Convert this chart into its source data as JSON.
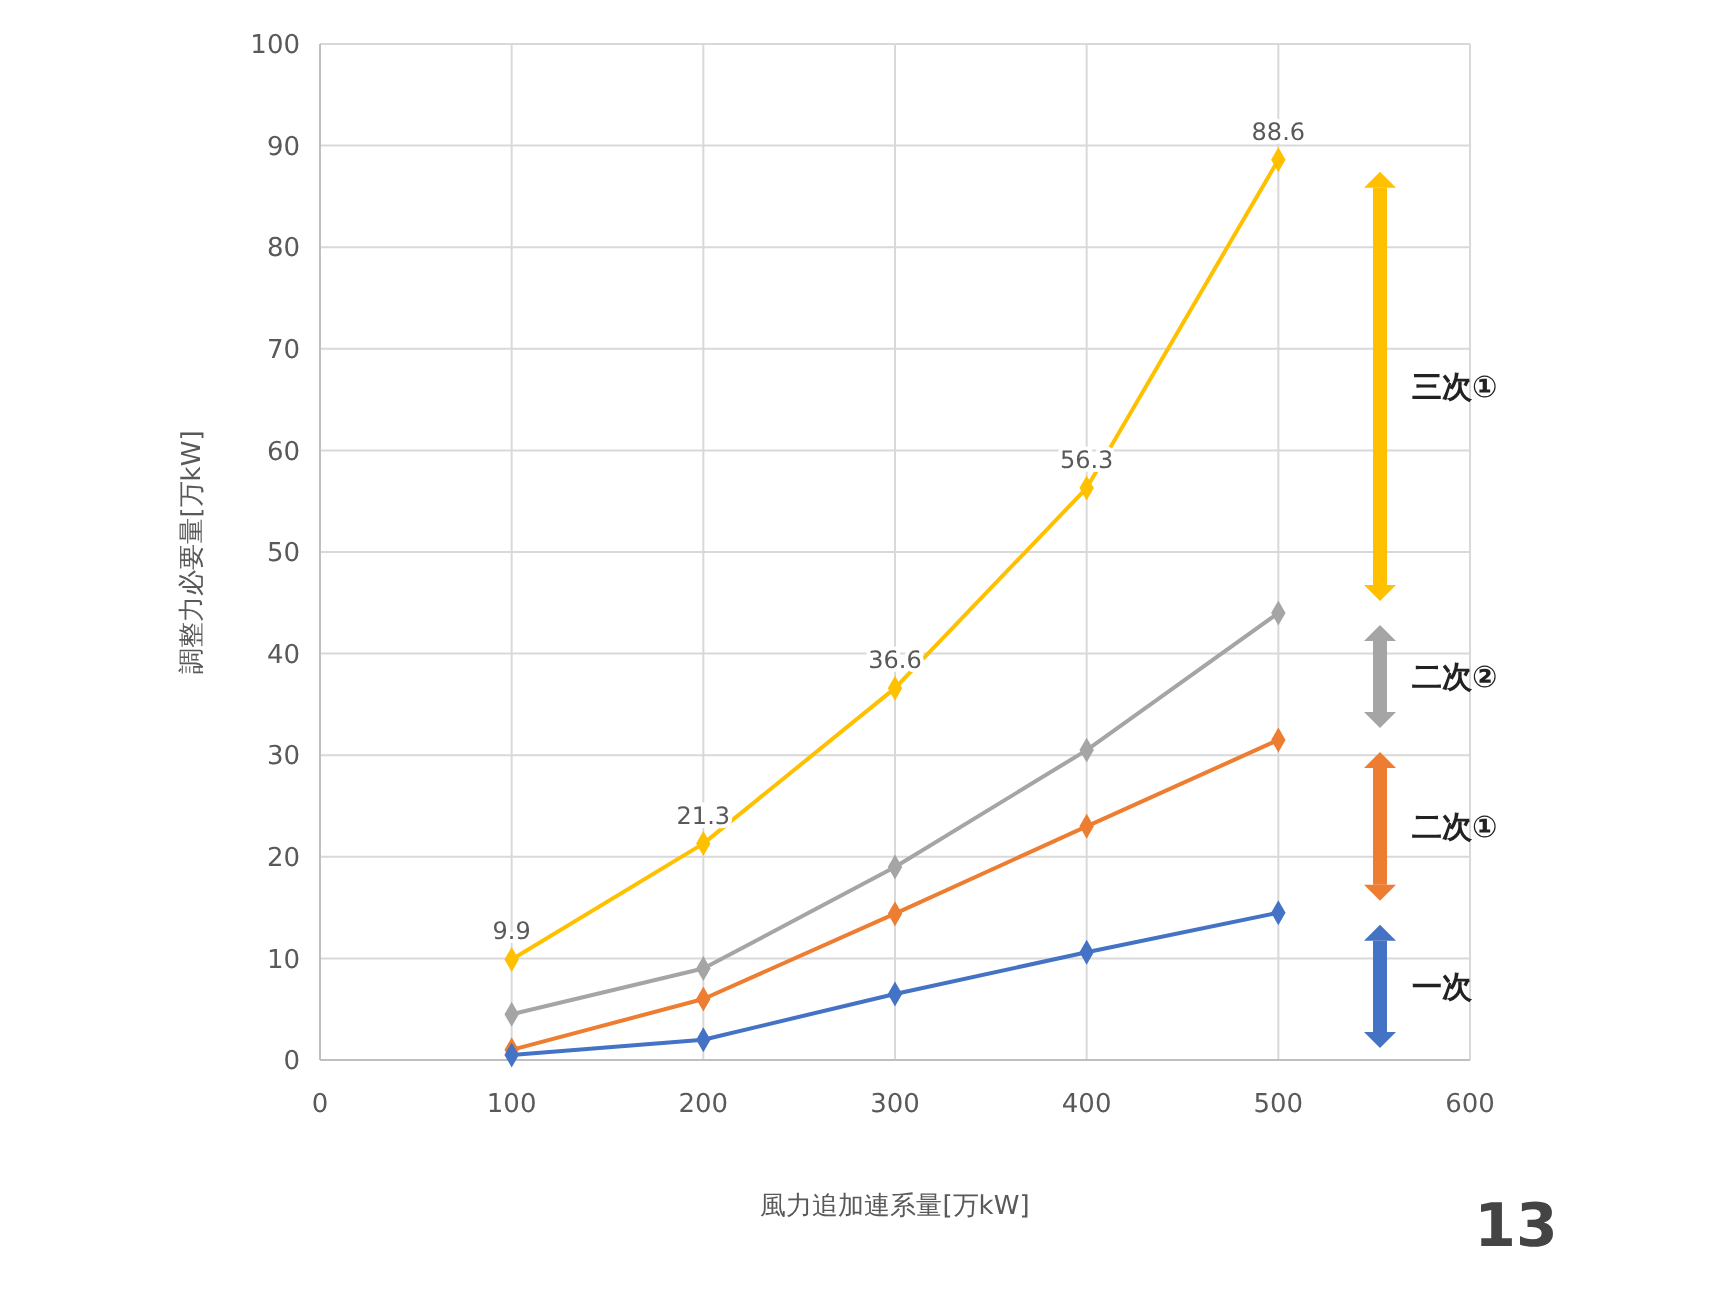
{
  "chart_data": {
    "type": "line",
    "xlabel": "風力追加連系量[万kW]",
    "ylabel": "調整力必要量[万kW]",
    "x": [
      100,
      200,
      300,
      400,
      500
    ],
    "series": [
      {
        "name": "一次",
        "color": "#4472c4",
        "values": [
          0.5,
          2,
          6.5,
          10.6,
          14.5
        ]
      },
      {
        "name": "二次①",
        "color": "#ed7d31",
        "values": [
          1,
          6,
          14.4,
          23,
          31.5
        ]
      },
      {
        "name": "二次②",
        "color": "#a5a5a5",
        "values": [
          4.5,
          9,
          19,
          30.5,
          44
        ]
      },
      {
        "name": "三次①",
        "color": "#ffc000",
        "values": [
          9.9,
          21.3,
          36.6,
          56.3,
          88.6
        ],
        "value_labels": [
          "9.9",
          "21.3",
          "36.6",
          "56.3",
          "88.6"
        ]
      }
    ],
    "xlim": [
      0,
      600
    ],
    "xticks": [
      0,
      100,
      200,
      300,
      400,
      500,
      600
    ],
    "ylim": [
      0,
      100
    ],
    "yticks": [
      0,
      10,
      20,
      30,
      40,
      50,
      60,
      70,
      80,
      90,
      100
    ],
    "grid": true,
    "marker": "diamond",
    "line_style": "solid",
    "annotations": [
      "13"
    ]
  }
}
